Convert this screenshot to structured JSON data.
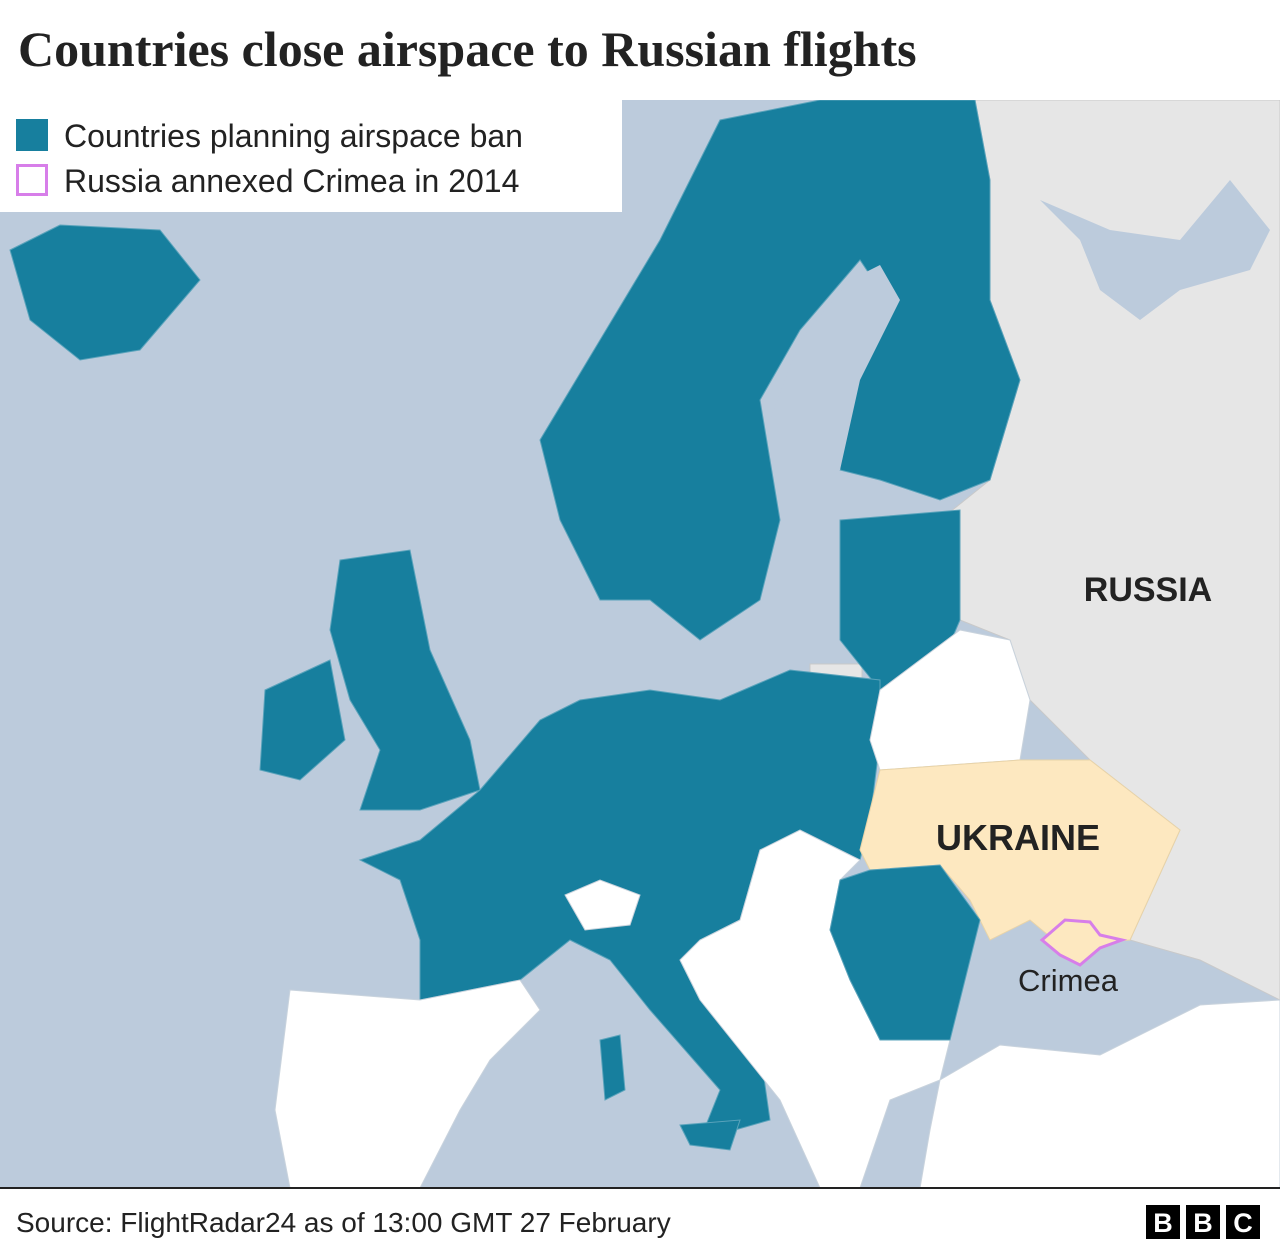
{
  "header": {
    "title": "Countries close airspace to Russian flights"
  },
  "legend": {
    "items": [
      {
        "label": "Countries planning airspace ban",
        "color": "#177f9e"
      },
      {
        "label": "Russia annexed Crimea in 2014",
        "color": "#d77ee9"
      }
    ]
  },
  "map": {
    "labels": {
      "russia": "RUSSIA",
      "ukraine": "UKRAINE",
      "crimea": "Crimea"
    }
  },
  "footer": {
    "source": "Source: FlightRadar24 as of 13:00 GMT 27 February",
    "logo": [
      "B",
      "B",
      "C"
    ]
  }
}
